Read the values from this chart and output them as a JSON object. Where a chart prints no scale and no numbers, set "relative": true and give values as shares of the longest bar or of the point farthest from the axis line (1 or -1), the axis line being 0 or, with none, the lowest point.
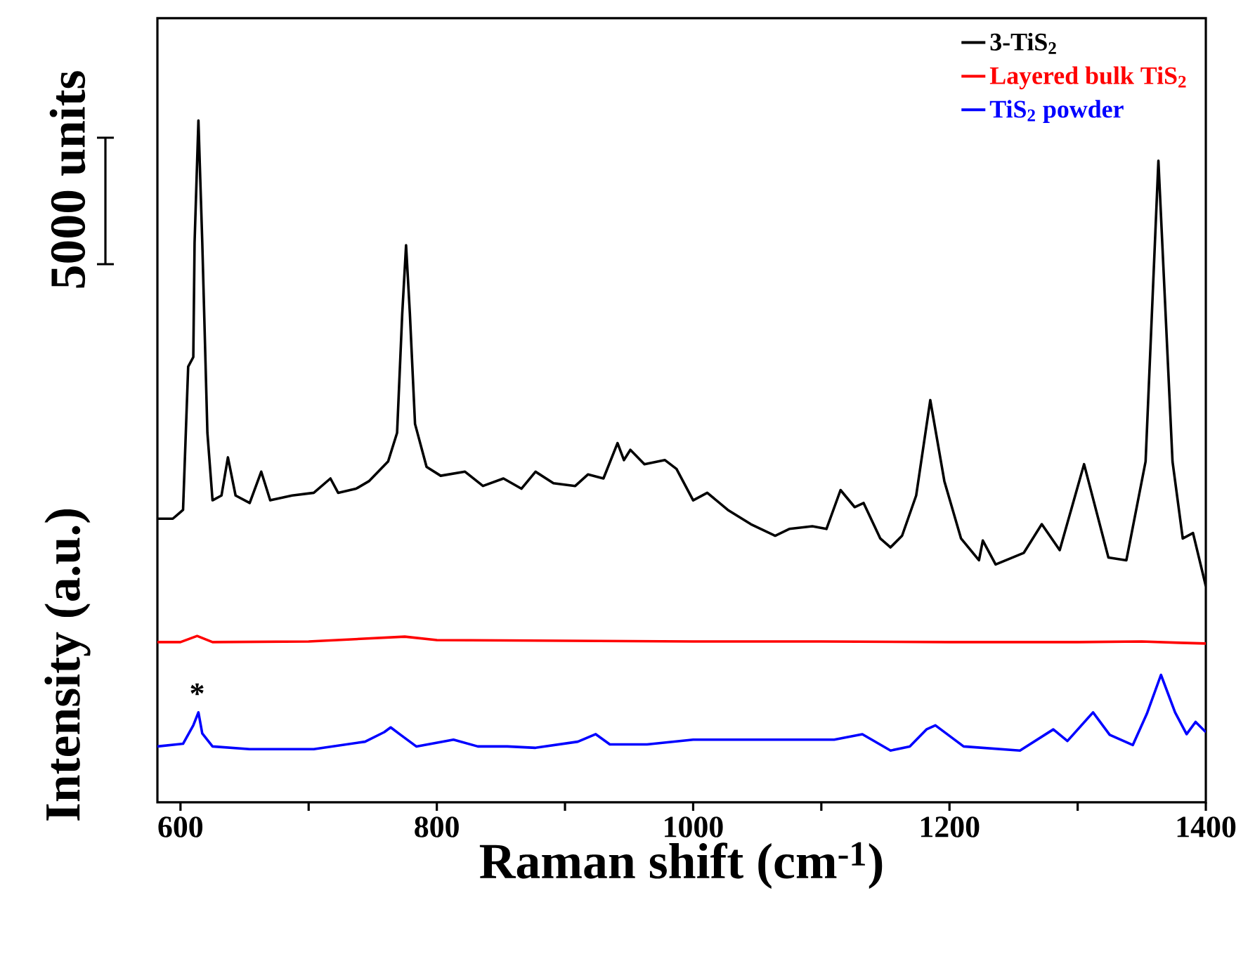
{
  "chart_data": {
    "type": "line",
    "relative": true,
    "xlabel": "Raman shift (cm$^{-1}$)",
    "ylabel": "Intensity (a.u.)",
    "xlim": [
      582,
      1400
    ],
    "xticks": [
      600,
      {
        "value": 700,
        "label": null
      },
      800,
      {
        "value": 900,
        "label": null
      },
      1000,
      {
        "value": 1100,
        "label": null
      },
      1200,
      {
        "value": 1300,
        "label": null
      },
      1400
    ],
    "tick_labels": "x",
    "legend": "top right",
    "annotations": [
      "5000 units",
      {
        "text": "*",
        "x": 613,
        "y": 0.132
      }
    ],
    "series": [
      {
        "name": "3-TiS$_{2}$",
        "color": "#000000",
        "x": [
          582,
          594,
          602,
          606,
          610,
          611,
          614,
          617,
          621,
          625,
          632,
          637,
          643,
          654,
          663,
          670,
          687,
          704,
          717,
          723,
          737,
          747,
          762,
          769,
          773,
          776,
          779,
          783,
          792,
          803,
          822,
          836,
          852,
          866,
          877,
          891,
          908,
          918,
          930,
          941,
          946,
          951,
          962,
          978,
          987,
          1000,
          1011,
          1027,
          1045,
          1064,
          1075,
          1093,
          1104,
          1115,
          1126,
          1133,
          1146,
          1154,
          1163,
          1174,
          1185,
          1196,
          1209,
          1223,
          1226,
          1236,
          1258,
          1272,
          1286,
          1305,
          1324,
          1338,
          1353,
          1363,
          1374,
          1382,
          1390,
          1400
        ],
        "values": [
          0.416,
          0.416,
          0.429,
          0.639,
          0.653,
          0.821,
          1.0,
          0.821,
          0.542,
          0.443,
          0.45,
          0.506,
          0.45,
          0.439,
          0.485,
          0.443,
          0.45,
          0.454,
          0.475,
          0.454,
          0.46,
          0.471,
          0.5,
          0.542,
          0.716,
          0.817,
          0.716,
          0.555,
          0.492,
          0.479,
          0.485,
          0.464,
          0.475,
          0.46,
          0.485,
          0.468,
          0.464,
          0.481,
          0.475,
          0.527,
          0.502,
          0.517,
          0.496,
          0.502,
          0.489,
          0.443,
          0.454,
          0.429,
          0.408,
          0.391,
          0.401,
          0.405,
          0.401,
          0.458,
          0.433,
          0.439,
          0.387,
          0.374,
          0.391,
          0.45,
          0.59,
          0.471,
          0.387,
          0.355,
          0.384,
          0.349,
          0.366,
          0.408,
          0.37,
          0.496,
          0.359,
          0.355,
          0.5,
          0.941,
          0.5,
          0.387,
          0.395,
          0.317
        ]
      },
      {
        "name": "Layered bulk TiS$_{2}$",
        "color": "#ff0000",
        "x": [
          582,
          600,
          613,
          625,
          700,
          775,
          800,
          900,
          1000,
          1100,
          1200,
          1300,
          1350,
          1380,
          1400
        ],
        "values": [
          0.235,
          0.235,
          0.244,
          0.235,
          0.236,
          0.243,
          0.238,
          0.237,
          0.236,
          0.236,
          0.235,
          0.235,
          0.236,
          0.234,
          0.233
        ]
      },
      {
        "name": "TiS$_{2}$ powder",
        "color": "#0000ff",
        "x": [
          582,
          602,
          610,
          614,
          617,
          625,
          654,
          704,
          744,
          759,
          764,
          771,
          784,
          813,
          832,
          855,
          877,
          910,
          924,
          935,
          964,
          1000,
          1037,
          1073,
          1110,
          1132,
          1154,
          1169,
          1182,
          1189,
          1211,
          1255,
          1281,
          1292,
          1312,
          1325,
          1343,
          1354,
          1365,
          1376,
          1385,
          1392,
          1400
        ],
        "values": [
          0.082,
          0.086,
          0.113,
          0.132,
          0.101,
          0.082,
          0.078,
          0.078,
          0.089,
          0.103,
          0.11,
          0.1,
          0.082,
          0.092,
          0.082,
          0.082,
          0.08,
          0.089,
          0.1,
          0.085,
          0.085,
          0.092,
          0.092,
          0.092,
          0.092,
          0.1,
          0.076,
          0.082,
          0.107,
          0.113,
          0.082,
          0.076,
          0.107,
          0.09,
          0.132,
          0.099,
          0.084,
          0.13,
          0.187,
          0.132,
          0.1,
          0.118,
          0.103
        ]
      }
    ]
  }
}
